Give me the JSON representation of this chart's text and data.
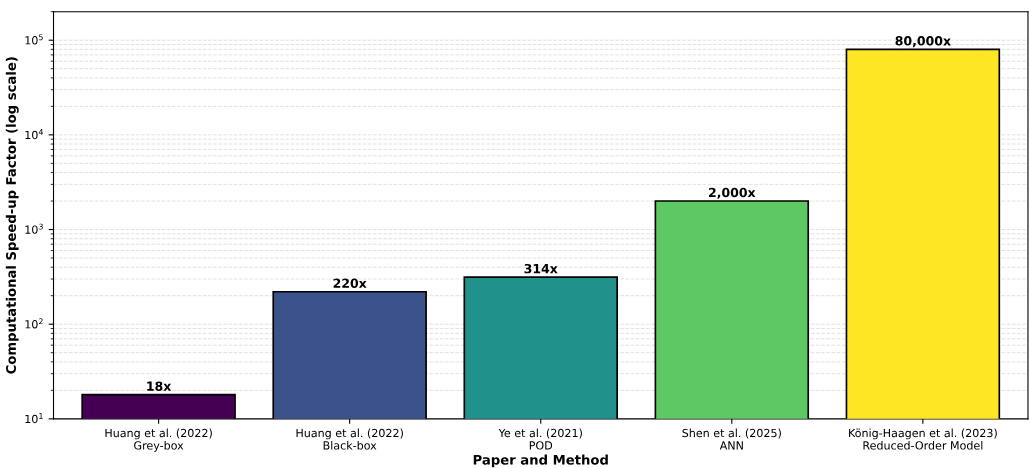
{
  "chart_data": {
    "type": "bar",
    "xlabel": "Paper and Method",
    "ylabel": "Computational Speed-up Factor (log scale)",
    "categories": [
      "Huang et al. (2022)\nGrey-box",
      "Huang et al. (2022)\nBlack-box",
      "Ye et al. (2021)\nPOD",
      "Shen et al. (2025)\nANN",
      "König-Haagen et al. (2023)\nReduced-Order Model"
    ],
    "values": [
      18,
      220,
      314,
      2000,
      80000
    ],
    "colors": [
      "#440154",
      "#3b528b",
      "#21918c",
      "#5ec962",
      "#fde725"
    ],
    "value_labels": [
      "18x",
      "220x",
      "314x",
      "2,000x",
      "80,000x"
    ],
    "log": "y",
    "ylim": [
      10,
      200000
    ],
    "yticks": [
      {
        "value": 10,
        "label": "10$^{1}$"
      },
      {
        "value": 100,
        "label": "10$^{2}$"
      },
      {
        "value": 1000,
        "label": "10$^{3}$"
      },
      {
        "value": 10000,
        "label": "10$^{4}$"
      },
      {
        "value": 100000,
        "label": "10$^{5}$"
      }
    ],
    "grid": "y"
  }
}
